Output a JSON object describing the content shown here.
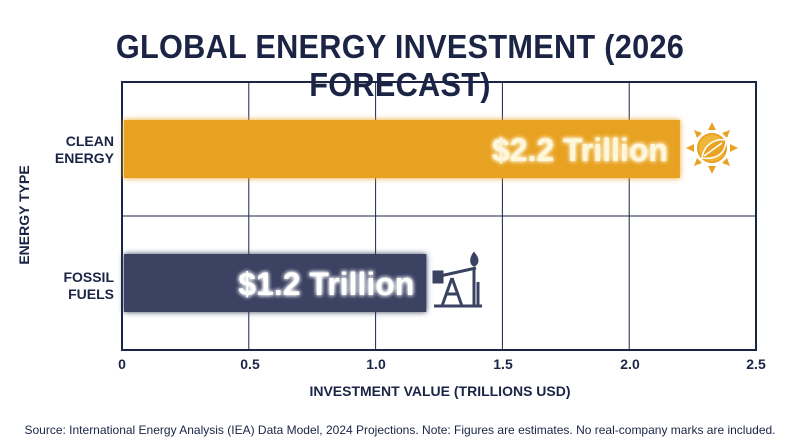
{
  "title": "GLOBAL ENERGY INVESTMENT (2026 FORECAST)",
  "source_note": "Source: International Energy Analysis (IEA) Data Model, 2024 Projections. Note: Figures are estimates. No real-company marks are included.",
  "chart_data": {
    "type": "bar",
    "orientation": "horizontal",
    "title": "GLOBAL ENERGY INVESTMENT (2026 FORECAST)",
    "xlabel": "INVESTMENT VALUE (TRILLIONS USD)",
    "ylabel": "ENERGY TYPE",
    "xlim": [
      0,
      2.5
    ],
    "x_ticks": [
      "0",
      "0.5",
      "1.0",
      "1.5",
      "2.0",
      "2.5"
    ],
    "x_tick_values": [
      0,
      0.5,
      1.0,
      1.5,
      2.0,
      2.5
    ],
    "grid": true,
    "categories": [
      {
        "lines": [
          "CLEAN",
          "ENERGY"
        ]
      },
      {
        "lines": [
          "FOSSIL",
          "FUELS"
        ]
      }
    ],
    "values": [
      2.2,
      1.2
    ],
    "data_labels": [
      "$2.2 Trillion",
      "$1.2 Trillion"
    ],
    "colors": [
      "#e8a224",
      "#3a4262"
    ],
    "icons": [
      "sun-leaf-icon",
      "oil-pump-icon"
    ]
  }
}
